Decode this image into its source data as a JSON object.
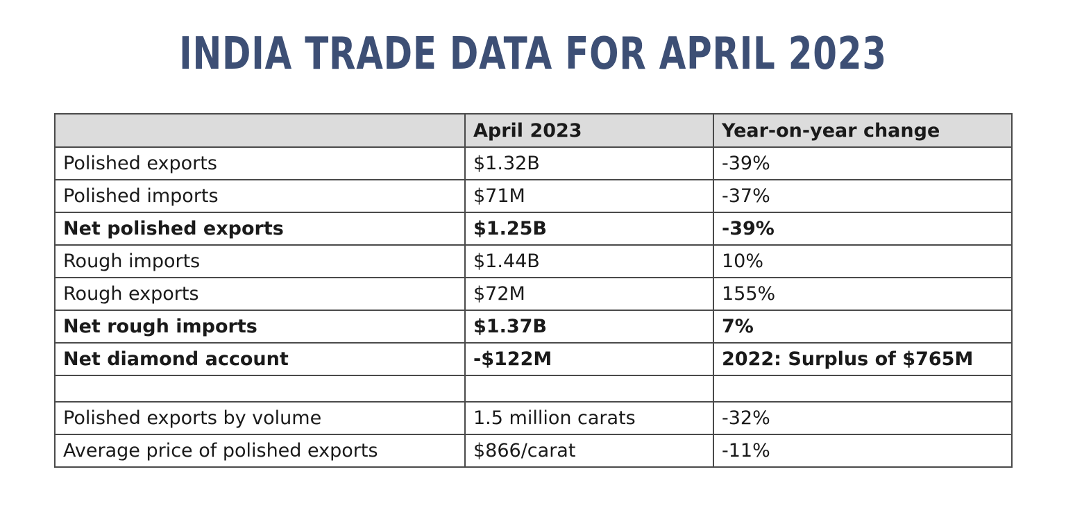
{
  "title": "INDIA TRADE DATA FOR APRIL 2023",
  "chart_data": {
    "type": "table",
    "title": "INDIA TRADE DATA FOR APRIL 2023",
    "columns": [
      "",
      "April 2023",
      "Year-on-year change"
    ],
    "rows": [
      {
        "label": "Polished exports",
        "value": "$1.32B",
        "change": "-39%",
        "bold": false
      },
      {
        "label": "Polished imports",
        "value": "$71M",
        "change": "-37%",
        "bold": false
      },
      {
        "label": "Net polished exports",
        "value": "$1.25B",
        "change": "-39%",
        "bold": true
      },
      {
        "label": "Rough imports",
        "value": "$1.44B",
        "change": "10%",
        "bold": false
      },
      {
        "label": "Rough exports",
        "value": "$72M",
        "change": "155%",
        "bold": false
      },
      {
        "label": "Net rough imports",
        "value": "$1.37B",
        "change": "7%",
        "bold": true
      },
      {
        "label": "Net diamond account",
        "value": "-$122M",
        "change": "2022: Surplus of $765M",
        "bold": true
      },
      {
        "label": "",
        "value": "",
        "change": "",
        "bold": false
      },
      {
        "label": "Polished exports by volume",
        "value": "1.5 million carats",
        "change": "-32%",
        "bold": false
      },
      {
        "label": "Average price of polished exports",
        "value": "$866/carat",
        "change": "-11%",
        "bold": false
      }
    ]
  },
  "colors": {
    "title": "#3d4f75",
    "header_background": "#dcdcdc",
    "border": "#4a4a4a"
  }
}
